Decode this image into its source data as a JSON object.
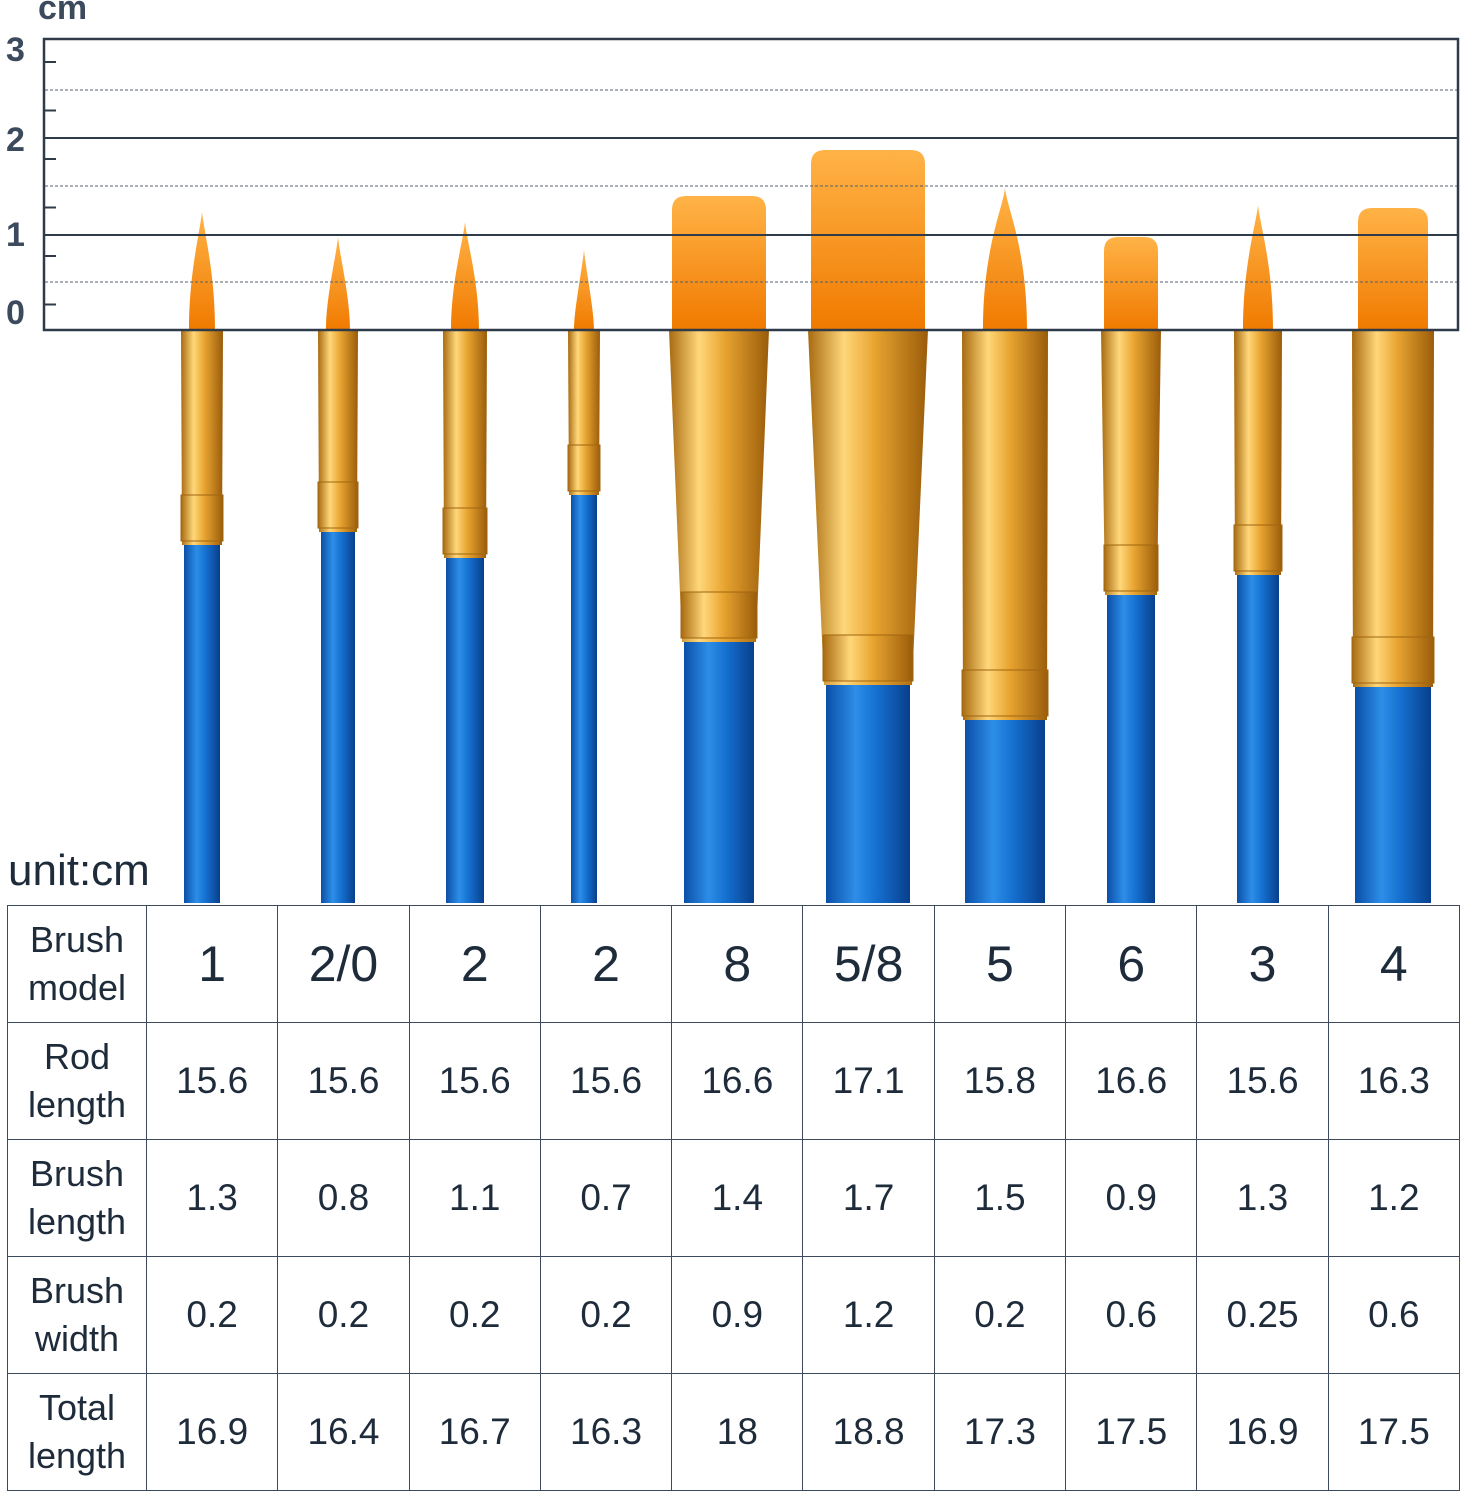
{
  "ruler": {
    "unit": "cm",
    "labels": [
      "3",
      "2",
      "1",
      "0"
    ]
  },
  "unit_note": "unit:cm",
  "table": {
    "rows": [
      [
        "Brush model",
        "1",
        "2/0",
        "2",
        "2",
        "8",
        "5/8",
        "5",
        "6",
        "3",
        "4"
      ],
      [
        "Rod length",
        "15.6",
        "15.6",
        "15.6",
        "15.6",
        "16.6",
        "17.1",
        "15.8",
        "16.6",
        "15.6",
        "16.3"
      ],
      [
        "Brush length",
        "1.3",
        "0.8",
        "1.1",
        "0.7",
        "1.4",
        "1.7",
        "1.5",
        "0.9",
        "1.3",
        "1.2"
      ],
      [
        "Brush width",
        "0.2",
        "0.2",
        "0.2",
        "0.2",
        "0.9",
        "1.2",
        "0.2",
        "0.6",
        "0.25",
        "0.6"
      ],
      [
        "Total length",
        "16.9",
        "16.4",
        "16.7",
        "16.3",
        "18",
        "18.8",
        "17.3",
        "17.5",
        "16.9",
        "17.5"
      ]
    ]
  }
}
